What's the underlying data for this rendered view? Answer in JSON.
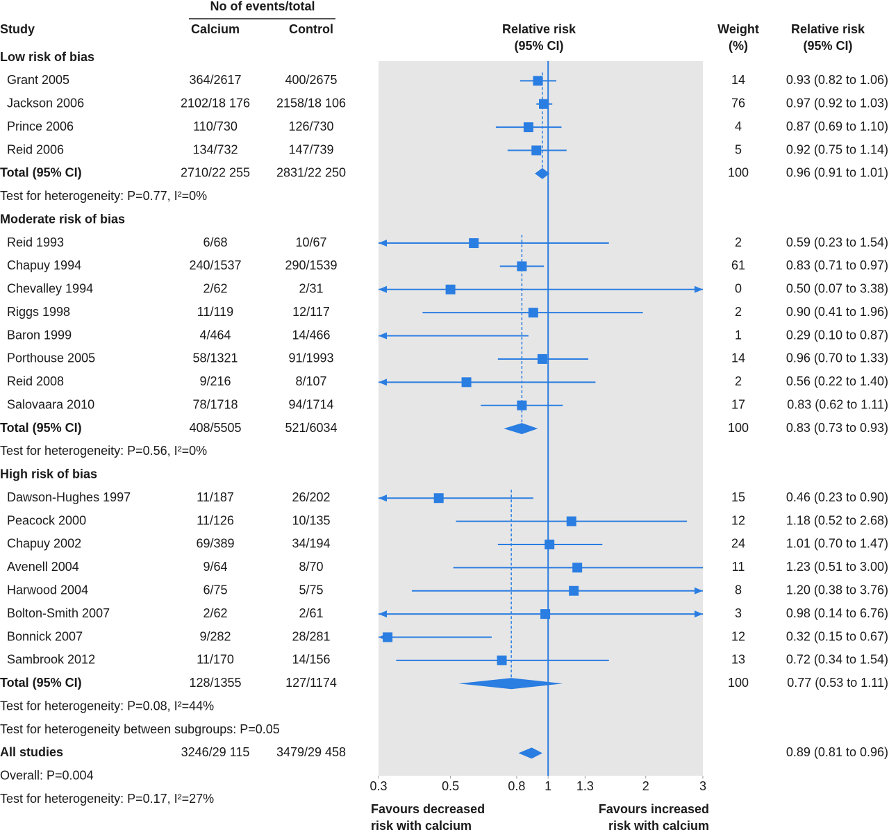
{
  "chart_data": {
    "type": "forest",
    "headers": {
      "events_group": "No of events/total",
      "study": "Study",
      "calcium": "Calcium",
      "control": "Control",
      "effect": [
        "Relative risk",
        "(95% CI)"
      ],
      "weight": [
        "Weight",
        "(%)"
      ],
      "ci": [
        "Relative risk",
        "(95% CI)"
      ]
    },
    "xlim": [
      0.3,
      3
    ],
    "xticks": [
      0.3,
      0.5,
      0.8,
      1,
      1.3,
      2,
      3
    ],
    "xscale": "log",
    "reference_line": 1,
    "color": "#2a7de1",
    "panel_color": "#e6e6e6",
    "favours": {
      "left": [
        "Favours decreased",
        "risk with calcium"
      ],
      "right": [
        "Favours increased",
        "risk with calcium"
      ]
    },
    "groups": [
      {
        "name": "Low risk of bias",
        "studies": [
          {
            "name": "Grant 2005",
            "calcium": "364/2617",
            "control": "400/2675",
            "weight": 14,
            "rr": 0.93,
            "lo": 0.82,
            "hi": 1.06,
            "ci_label": "0.93 (0.82 to 1.06)"
          },
          {
            "name": "Jackson 2006",
            "calcium": "2102/18 176",
            "control": "2158/18 106",
            "weight": 76,
            "rr": 0.97,
            "lo": 0.92,
            "hi": 1.03,
            "ci_label": "0.97 (0.92 to 1.03)"
          },
          {
            "name": "Prince 2006",
            "calcium": "110/730",
            "control": "126/730",
            "weight": 4,
            "rr": 0.87,
            "lo": 0.69,
            "hi": 1.1,
            "ci_label": "0.87 (0.69 to 1.10)"
          },
          {
            "name": "Reid 2006",
            "calcium": "134/732",
            "control": "147/739",
            "weight": 5,
            "rr": 0.92,
            "lo": 0.75,
            "hi": 1.14,
            "ci_label": "0.92 (0.75 to 1.14)"
          }
        ],
        "total": {
          "name": "Total (95% CI)",
          "calcium": "2710/22 255",
          "control": "2831/22 250",
          "weight": 100,
          "rr": 0.96,
          "lo": 0.91,
          "hi": 1.01,
          "ci_label": "0.96 (0.91 to 1.01)"
        },
        "heterogeneity": "Test for heterogeneity: P=0.77, I²=0%"
      },
      {
        "name": "Moderate risk of bias",
        "studies": [
          {
            "name": "Reid 1993",
            "calcium": "6/68",
            "control": "10/67",
            "weight": 2,
            "rr": 0.59,
            "lo": 0.23,
            "hi": 1.54,
            "ci_label": "0.59 (0.23 to 1.54)"
          },
          {
            "name": "Chapuy 1994",
            "calcium": "240/1537",
            "control": "290/1539",
            "weight": 61,
            "rr": 0.83,
            "lo": 0.71,
            "hi": 0.97,
            "ci_label": "0.83 (0.71 to 0.97)"
          },
          {
            "name": "Chevalley 1994",
            "calcium": "2/62",
            "control": "2/31",
            "weight": 0,
            "rr": 0.5,
            "lo": 0.07,
            "hi": 3.38,
            "ci_label": "0.50 (0.07 to 3.38)"
          },
          {
            "name": "Riggs 1998",
            "calcium": "11/119",
            "control": "12/117",
            "weight": 2,
            "rr": 0.9,
            "lo": 0.41,
            "hi": 1.96,
            "ci_label": "0.90 (0.41 to 1.96)"
          },
          {
            "name": "Baron 1999",
            "calcium": "4/464",
            "control": "14/466",
            "weight": 1,
            "rr": 0.29,
            "lo": 0.1,
            "hi": 0.87,
            "ci_label": "0.29 (0.10 to 0.87)"
          },
          {
            "name": "Porthouse 2005",
            "calcium": "58/1321",
            "control": "91/1993",
            "weight": 14,
            "rr": 0.96,
            "lo": 0.7,
            "hi": 1.33,
            "ci_label": "0.96 (0.70 to 1.33)"
          },
          {
            "name": "Reid 2008",
            "calcium": "9/216",
            "control": "8/107",
            "weight": 2,
            "rr": 0.56,
            "lo": 0.22,
            "hi": 1.4,
            "ci_label": "0.56 (0.22 to 1.40)"
          },
          {
            "name": "Salovaara 2010",
            "calcium": "78/1718",
            "control": "94/1714",
            "weight": 17,
            "rr": 0.83,
            "lo": 0.62,
            "hi": 1.11,
            "ci_label": "0.83 (0.62 to 1.11)"
          }
        ],
        "total": {
          "name": "Total (95% CI)",
          "calcium": "408/5505",
          "control": "521/6034",
          "weight": 100,
          "rr": 0.83,
          "lo": 0.73,
          "hi": 0.93,
          "ci_label": "0.83 (0.73 to 0.93)"
        },
        "heterogeneity": "Test for heterogeneity: P=0.56, I²=0%"
      },
      {
        "name": "High risk of bias",
        "studies": [
          {
            "name": "Dawson-Hughes 1997",
            "calcium": "11/187",
            "control": "26/202",
            "weight": 15,
            "rr": 0.46,
            "lo": 0.23,
            "hi": 0.9,
            "ci_label": "0.46 (0.23 to 0.90)"
          },
          {
            "name": "Peacock 2000",
            "calcium": "11/126",
            "control": "10/135",
            "weight": 12,
            "rr": 1.18,
            "lo": 0.52,
            "hi": 2.68,
            "ci_label": "1.18 (0.52 to 2.68)"
          },
          {
            "name": "Chapuy 2002",
            "calcium": "69/389",
            "control": "34/194",
            "weight": 24,
            "rr": 1.01,
            "lo": 0.7,
            "hi": 1.47,
            "ci_label": "1.01 (0.70 to 1.47)"
          },
          {
            "name": "Avenell 2004",
            "calcium": "9/64",
            "control": "8/70",
            "weight": 11,
            "rr": 1.23,
            "lo": 0.51,
            "hi": 3,
            "ci_label": "1.23 (0.51 to 3.00)"
          },
          {
            "name": "Harwood 2004",
            "calcium": "6/75",
            "control": "5/75",
            "weight": 8,
            "rr": 1.2,
            "lo": 0.38,
            "hi": 3.76,
            "ci_label": "1.20 (0.38 to 3.76)"
          },
          {
            "name": "Bolton-Smith 2007",
            "calcium": "2/62",
            "control": "2/61",
            "weight": 3,
            "rr": 0.98,
            "lo": 0.14,
            "hi": 6.76,
            "ci_label": "0.98 (0.14 to 6.76)"
          },
          {
            "name": "Bonnick 2007",
            "calcium": "9/282",
            "control": "28/281",
            "weight": 12,
            "rr": 0.32,
            "lo": 0.15,
            "hi": 0.67,
            "ci_label": "0.32 (0.15 to 0.67)"
          },
          {
            "name": "Sambrook 2012",
            "calcium": "11/170",
            "control": "14/156",
            "weight": 13,
            "rr": 0.72,
            "lo": 0.34,
            "hi": 1.54,
            "ci_label": "0.72 (0.34 to 1.54)"
          }
        ],
        "total": {
          "name": "Total (95% CI)",
          "calcium": "128/1355",
          "control": "127/1174",
          "weight": 100,
          "rr": 0.77,
          "lo": 0.53,
          "hi": 1.11,
          "ci_label": "0.77 (0.53 to 1.11)"
        },
        "heterogeneity": "Test for heterogeneity: P=0.08, I²=44%"
      }
    ],
    "subgroup_test": "Test for heterogeneity between subgroups: P=0.05",
    "overall": {
      "name": "All studies",
      "calcium": "3246/29 115",
      "control": "3479/29 458",
      "rr": 0.89,
      "lo": 0.81,
      "hi": 0.96,
      "ci_label": "0.89 (0.81 to 0.96)",
      "test": "Overall: P=0.004",
      "heterogeneity": "Test for heterogeneity: P=0.17, I²=27%"
    }
  }
}
